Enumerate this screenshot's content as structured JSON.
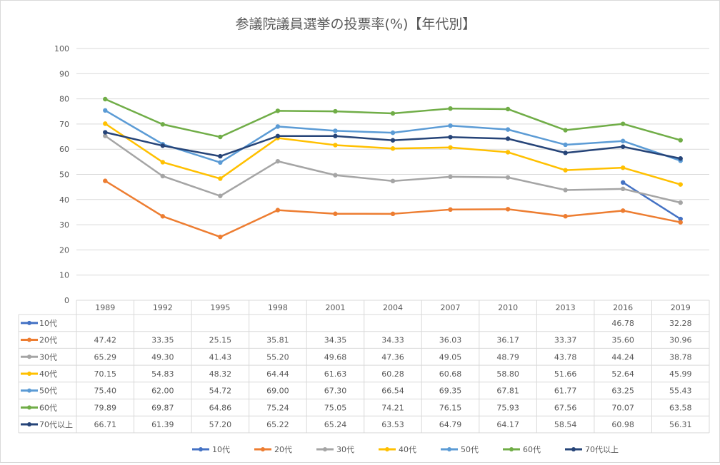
{
  "chart_data": {
    "type": "line",
    "title": "参議院議員選挙の投票率(%)【年代別】",
    "xlabel": "",
    "ylabel": "",
    "ylim": [
      0,
      100
    ],
    "y_ticks": [
      "0",
      "10",
      "20",
      "30",
      "40",
      "50",
      "60",
      "70",
      "80",
      "90",
      "100"
    ],
    "grid": true,
    "legend_position": "bottom",
    "data_table": true,
    "categories": [
      "1989",
      "1992",
      "1995",
      "1998",
      "2001",
      "2004",
      "2007",
      "2010",
      "2013",
      "2016",
      "2019"
    ],
    "series": [
      {
        "name": "10代",
        "color": "#4472C4",
        "values": [
          null,
          null,
          null,
          null,
          null,
          null,
          null,
          null,
          null,
          46.78,
          32.28
        ],
        "labels": [
          "",
          "",
          "",
          "",
          "",
          "",
          "",
          "",
          "",
          "46.78",
          "32.28"
        ]
      },
      {
        "name": "20代",
        "color": "#ED7D31",
        "values": [
          47.42,
          33.35,
          25.15,
          35.81,
          34.35,
          34.33,
          36.03,
          36.17,
          33.37,
          35.6,
          30.96
        ],
        "labels": [
          "47.42",
          "33.35",
          "25.15",
          "35.81",
          "34.35",
          "34.33",
          "36.03",
          "36.17",
          "33.37",
          "35.60",
          "30.96"
        ]
      },
      {
        "name": "30代",
        "color": "#A5A5A5",
        "values": [
          65.29,
          49.3,
          41.43,
          55.2,
          49.68,
          47.36,
          49.05,
          48.79,
          43.78,
          44.24,
          38.78
        ],
        "labels": [
          "65.29",
          "49.30",
          "41.43",
          "55.20",
          "49.68",
          "47.36",
          "49.05",
          "48.79",
          "43.78",
          "44.24",
          "38.78"
        ]
      },
      {
        "name": "40代",
        "color": "#FFC000",
        "values": [
          70.15,
          54.83,
          48.32,
          64.44,
          61.63,
          60.28,
          60.68,
          58.8,
          51.66,
          52.64,
          45.99
        ],
        "labels": [
          "70.15",
          "54.83",
          "48.32",
          "64.44",
          "61.63",
          "60.28",
          "60.68",
          "58.80",
          "51.66",
          "52.64",
          "45.99"
        ]
      },
      {
        "name": "50代",
        "color": "#5B9BD5",
        "values": [
          75.4,
          62.0,
          54.72,
          69.0,
          67.3,
          66.54,
          69.35,
          67.81,
          61.77,
          63.25,
          55.43
        ],
        "labels": [
          "75.40",
          "62.00",
          "54.72",
          "69.00",
          "67.30",
          "66.54",
          "69.35",
          "67.81",
          "61.77",
          "63.25",
          "55.43"
        ]
      },
      {
        "name": "60代",
        "color": "#70AD47",
        "values": [
          79.89,
          69.87,
          64.86,
          75.24,
          75.05,
          74.21,
          76.15,
          75.93,
          67.56,
          70.07,
          63.58
        ],
        "labels": [
          "79.89",
          "69.87",
          "64.86",
          "75.24",
          "75.05",
          "74.21",
          "76.15",
          "75.93",
          "67.56",
          "70.07",
          "63.58"
        ]
      },
      {
        "name": "70代以上",
        "color": "#264478",
        "values": [
          66.71,
          61.39,
          57.2,
          65.22,
          65.24,
          63.53,
          64.79,
          64.17,
          58.54,
          60.98,
          56.31
        ],
        "labels": [
          "66.71",
          "61.39",
          "57.20",
          "65.22",
          "65.24",
          "63.53",
          "64.79",
          "64.17",
          "58.54",
          "60.98",
          "56.31"
        ]
      }
    ]
  }
}
